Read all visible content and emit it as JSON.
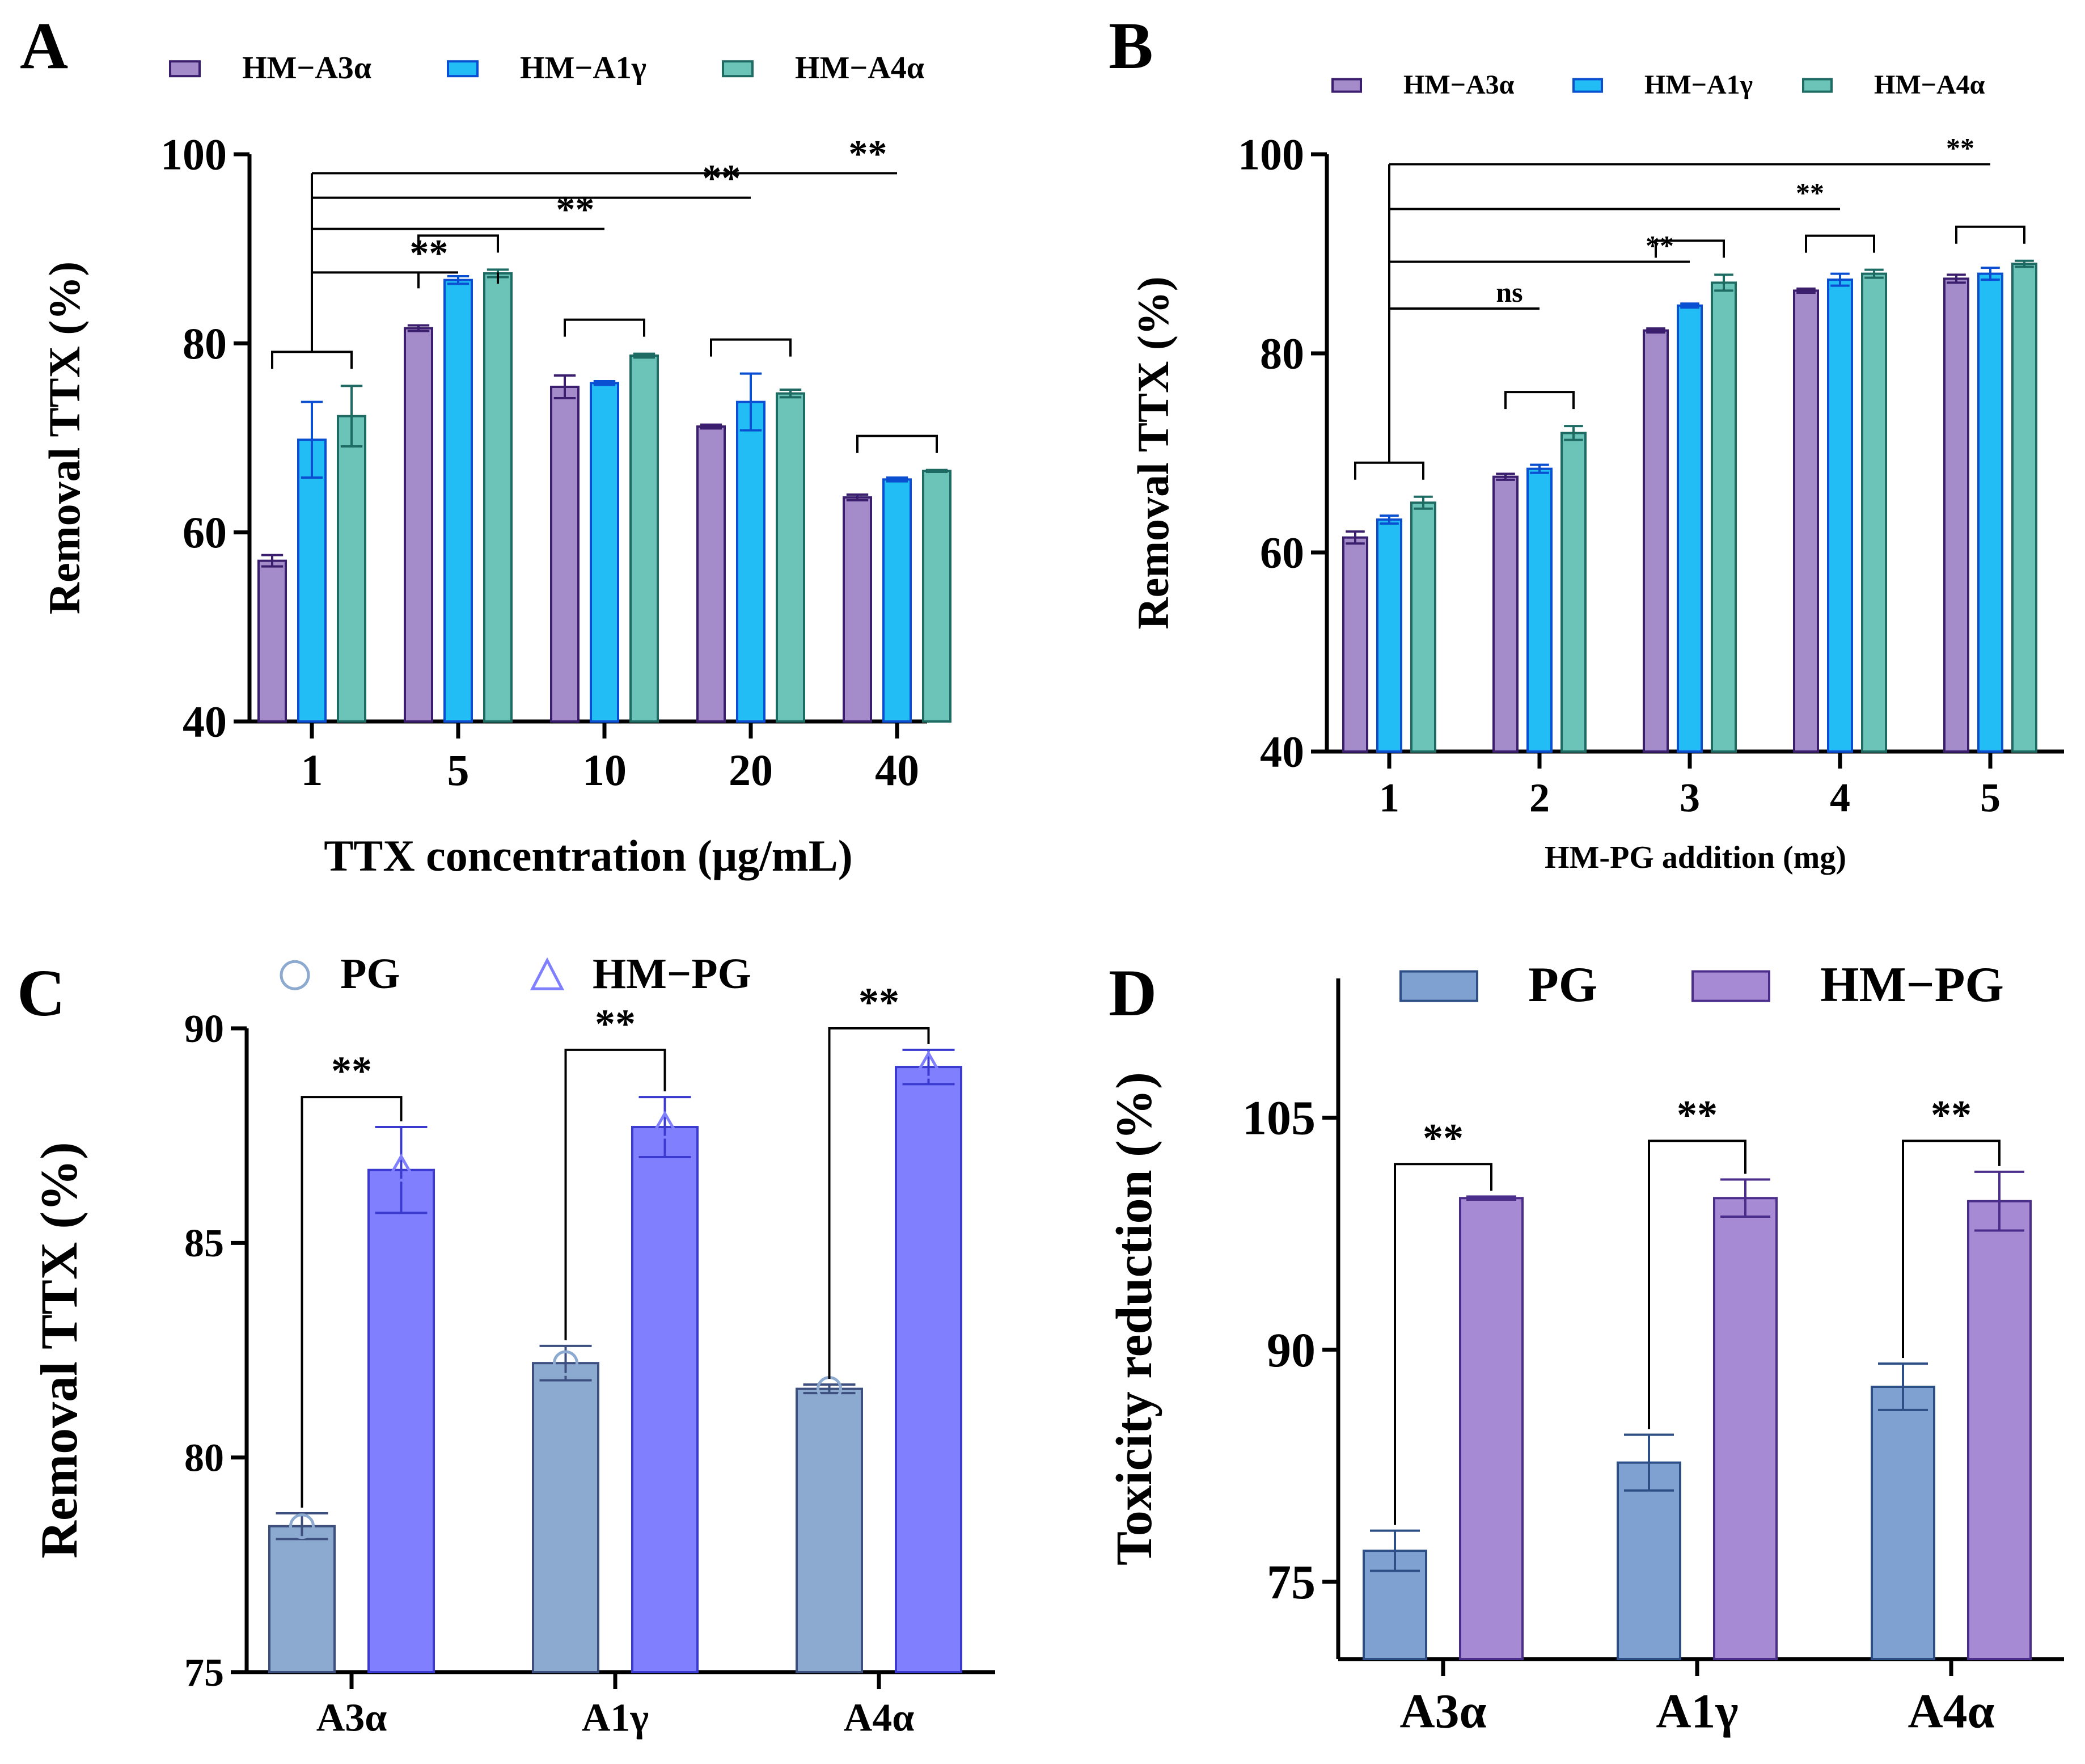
{
  "figure": {
    "description_free": true
  },
  "panels": [
    {
      "id": "panel-a",
      "panel_label": "A",
      "chart_data": {
        "type": "bar",
        "xlabel": "TTX concentration (μg/mL)",
        "ylabel": "Removal TTX  (%)",
        "ylim": [
          40,
          100
        ],
        "yticks": [
          "40",
          "60",
          "80",
          "100"
        ],
        "categories": [
          "1",
          "5",
          "10",
          "20",
          "40"
        ],
        "legend": {
          "position": "top",
          "size": "medium"
        },
        "series": [
          {
            "name": "HM−A3α",
            "color": "#a48bc9",
            "stroke": "#3b1f6e",
            "values": [
              57.0,
              81.6,
              75.4,
              71.2,
              63.7
            ],
            "errors": [
              0.6,
              0.3,
              1.2,
              0.2,
              0.3
            ]
          },
          {
            "name": "HM−A1γ",
            "color": "#22bdf5",
            "stroke": "#0a4fd1",
            "values": [
              69.8,
              86.7,
              75.8,
              73.8,
              65.6
            ],
            "errors": [
              4.0,
              0.4,
              0.2,
              3.0,
              0.2
            ]
          },
          {
            "name": "HM−A4α",
            "color": "#6cc3b8",
            "stroke": "#1d6b62",
            "values": [
              72.3,
              87.4,
              78.7,
              74.7,
              66.5
            ],
            "errors": [
              3.2,
              0.4,
              0.2,
              0.4,
              0.1
            ]
          }
        ],
        "brackets": [
          {
            "type": "group",
            "cat": 0
          },
          {
            "type": "group",
            "cat": 1
          },
          {
            "type": "group",
            "cat": 2
          },
          {
            "type": "group",
            "cat": 3
          },
          {
            "type": "group",
            "cat": 4
          },
          {
            "type": "compare",
            "from": 0,
            "to": 1,
            "level": 87.5,
            "label": "**"
          },
          {
            "type": "compare",
            "from": 0,
            "to": 2,
            "level": 92.1,
            "label": "**"
          },
          {
            "type": "compare",
            "from": 0,
            "to": 3,
            "level": 95.4,
            "label": "**"
          },
          {
            "type": "compare",
            "from": 0,
            "to": 4,
            "level": 98.0,
            "label": "**"
          }
        ]
      }
    },
    {
      "id": "panel-b",
      "panel_label": "B",
      "chart_data": {
        "type": "bar",
        "xlabel": "HM-PG addition (mg)",
        "ylabel": "Removal TTX  (%)",
        "ylim": [
          40,
          100
        ],
        "yticks": [
          "40",
          "60",
          "80",
          "100"
        ],
        "categories": [
          "1",
          "2",
          "3",
          "4",
          "5"
        ],
        "legend": {
          "position": "top",
          "size": "small"
        },
        "series": [
          {
            "name": "HM−A3α",
            "color": "#a48bc9",
            "stroke": "#3b1f6e",
            "values": [
              61.5,
              67.6,
              82.3,
              86.3,
              87.5
            ],
            "errors": [
              0.6,
              0.3,
              0.2,
              0.2,
              0.4
            ]
          },
          {
            "name": "HM−A1γ",
            "color": "#22bdf5",
            "stroke": "#0a4fd1",
            "values": [
              63.3,
              68.4,
              84.8,
              87.4,
              88.0
            ],
            "errors": [
              0.4,
              0.4,
              0.2,
              0.6,
              0.6
            ]
          },
          {
            "name": "HM−A4α",
            "color": "#6cc3b8",
            "stroke": "#1d6b62",
            "values": [
              65.0,
              72.0,
              87.1,
              88.0,
              89.0
            ],
            "errors": [
              0.6,
              0.7,
              0.8,
              0.4,
              0.3
            ]
          }
        ],
        "brackets": [
          {
            "type": "group",
            "cat": 0
          },
          {
            "type": "group",
            "cat": 1
          },
          {
            "type": "group",
            "cat": 2
          },
          {
            "type": "group",
            "cat": 3
          },
          {
            "type": "group",
            "cat": 4
          },
          {
            "type": "compare",
            "from": 0,
            "to": 1,
            "level": 84.5,
            "label": "ns"
          },
          {
            "type": "compare",
            "from": 0,
            "to": 2,
            "level": 89.2,
            "label": "**"
          },
          {
            "type": "compare",
            "from": 0,
            "to": 3,
            "level": 94.5,
            "label": "**"
          },
          {
            "type": "compare",
            "from": 0,
            "to": 4,
            "level": 99.0,
            "label": "**"
          }
        ]
      }
    },
    {
      "id": "panel-c",
      "panel_label": "C",
      "chart_data": {
        "type": "bar",
        "xlabel": "",
        "ylabel": "Removal TTX  (%)",
        "ylim": [
          75,
          90
        ],
        "yticks": [
          "75",
          "80",
          "85",
          "90"
        ],
        "categories": [
          "A3α",
          "A1γ",
          "A4α"
        ],
        "legend": {
          "position": "top",
          "size": "large"
        },
        "series": [
          {
            "name": "PG",
            "color": "#8ca9d0",
            "stroke": "#3c4f7e",
            "marker": "circle",
            "values": [
              78.4,
              82.2,
              81.6
            ],
            "errors": [
              0.3,
              0.4,
              0.1
            ]
          },
          {
            "name": "HM−PG",
            "color": "#8080ff",
            "stroke": "#3a3ad0",
            "marker": "triangle",
            "values": [
              86.7,
              87.7,
              89.1
            ],
            "errors": [
              1.0,
              0.7,
              0.4
            ]
          }
        ],
        "brackets": [
          {
            "type": "pair",
            "cat": 0,
            "level": 88.4,
            "label": "**"
          },
          {
            "type": "pair",
            "cat": 1,
            "level": 89.5,
            "label": "**"
          },
          {
            "type": "pair",
            "cat": 2,
            "level": 90.0,
            "label": "**"
          }
        ]
      }
    },
    {
      "id": "panel-d",
      "panel_label": "D",
      "chart_data": {
        "type": "bar",
        "xlabel": "",
        "ylabel": "Toxicity reduction (%)",
        "ylim": [
          70,
          114
        ],
        "yticks": [
          "75",
          "90",
          "105"
        ],
        "categories": [
          "A3α",
          "A1γ",
          "A4α"
        ],
        "legend": {
          "position": "top",
          "size": "xlarge"
        },
        "series": [
          {
            "name": "PG",
            "color": "#7fa1d2",
            "stroke": "#2d4f86",
            "values": [
              77.0,
              82.7,
              87.6
            ],
            "errors": [
              1.3,
              1.8,
              1.5
            ]
          },
          {
            "name": "HM−PG",
            "color": "#a68ad3",
            "stroke": "#4b2e8c",
            "values": [
              99.8,
              99.8,
              99.6
            ],
            "errors": [
              0.1,
              1.2,
              1.9
            ]
          }
        ],
        "brackets": [
          {
            "type": "pair",
            "cat": 0,
            "level": 102.0,
            "label": "**"
          },
          {
            "type": "pair",
            "cat": 1,
            "level": 103.5,
            "label": "**"
          },
          {
            "type": "pair",
            "cat": 2,
            "level": 103.5,
            "label": "**"
          }
        ]
      }
    }
  ]
}
